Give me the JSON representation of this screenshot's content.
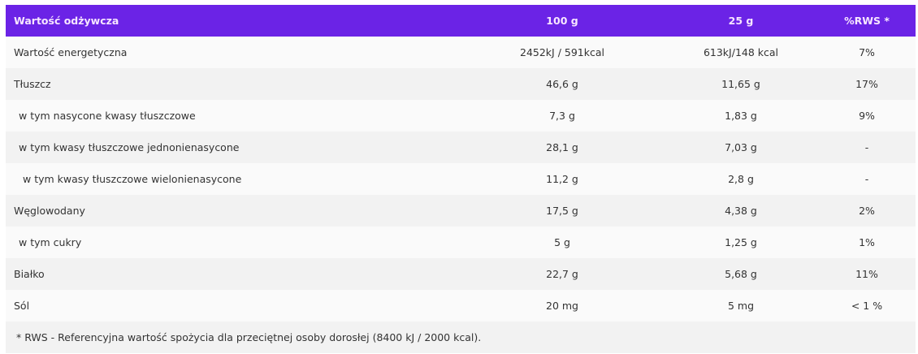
{
  "header": {
    "label": "Wartość odżywcza",
    "col_100g": "100 g",
    "col_25g": "25 g",
    "col_rws": "%RWS *"
  },
  "rows": [
    {
      "label": "Wartość energetyczna",
      "v100": "2452kJ / 591kcal",
      "v25": "613kJ/148 kcal",
      "rws": "7%",
      "indent": 0
    },
    {
      "label": "Tłuszcz",
      "v100": "46,6 g",
      "v25": "11,65 g",
      "rws": "17%",
      "indent": 0
    },
    {
      "label": "w tym nasycone kwasy tłuszczowe",
      "v100": "7,3 g",
      "v25": "1,83 g",
      "rws": "9%",
      "indent": 1
    },
    {
      "label": "w tym kwasy tłuszczowe jednonienasycone",
      "v100": "28,1 g",
      "v25": "7,03 g",
      "rws": "-",
      "indent": 1
    },
    {
      "label": "w tym kwasy tłuszczowe wielonienasycone",
      "v100": "11,2 g",
      "v25": "2,8 g",
      "rws": "-",
      "indent": 2
    },
    {
      "label": "Węglowodany",
      "v100": "17,5 g",
      "v25": "4,38 g",
      "rws": "2%",
      "indent": 0
    },
    {
      "label": "w tym cukry",
      "v100": "5 g",
      "v25": "1,25 g",
      "rws": "1%",
      "indent": 1
    },
    {
      "label": "Białko",
      "v100": "22,7 g",
      "v25": "5,68 g",
      "rws": "11%",
      "indent": 0
    },
    {
      "label": "Sól",
      "v100": "20 mg",
      "v25": "5 mg",
      "rws": "< 1 %",
      "indent": 0
    }
  ],
  "footnote": "* RWS - Referencyjna wartość spożycia dla przeciętnej osoby dorosłej (8400 kJ / 2000 kcal).",
  "colors": {
    "header_bg": "#6b23e6",
    "header_text": "#f7e6ff"
  }
}
